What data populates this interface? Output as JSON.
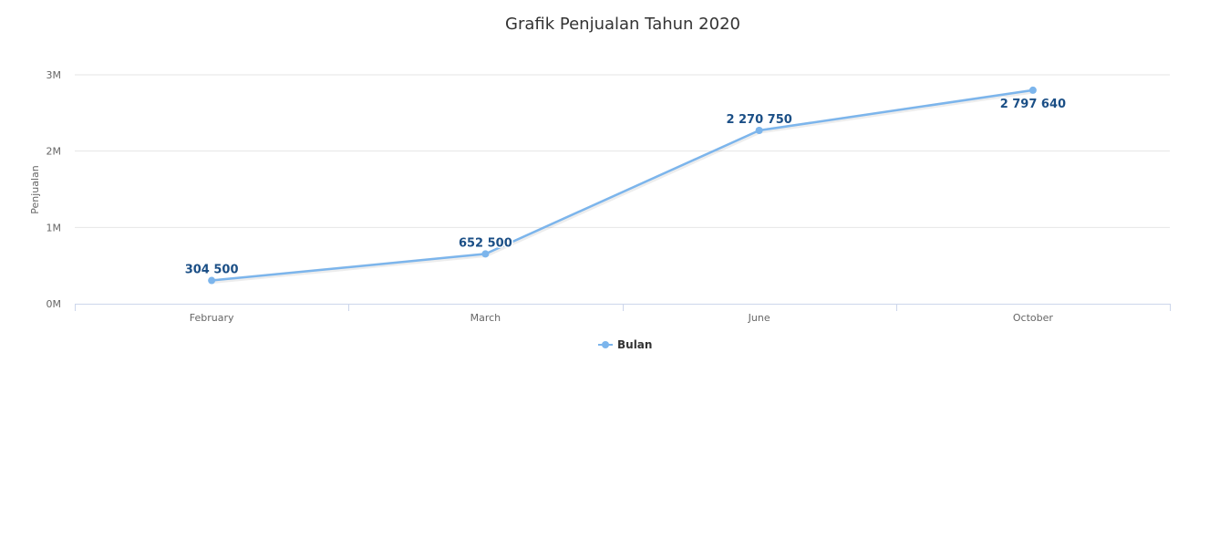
{
  "chart_data": {
    "type": "line",
    "title": "Grafik Penjualan Tahun 2020",
    "xlabel": "",
    "ylabel": "Penjualan",
    "categories": [
      "February",
      "March",
      "June",
      "October"
    ],
    "series": [
      {
        "name": "Bulan",
        "values": [
          304500,
          652500,
          2270750,
          2797640
        ],
        "labels": [
          "304 500",
          "652 500",
          "2 270 750",
          "2 797 640"
        ],
        "color": "#7cb5ec"
      }
    ],
    "ylim": [
      0,
      3000000
    ],
    "yticks": [
      0,
      1000000,
      2000000,
      3000000
    ],
    "ytick_labels": [
      "0M",
      "1M",
      "2M",
      "3M"
    ],
    "grid": true,
    "legend": "bottom-center"
  }
}
